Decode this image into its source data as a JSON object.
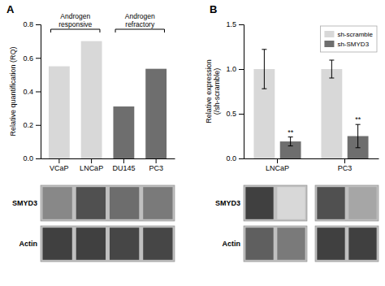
{
  "chart_data": [
    {
      "type": "bar",
      "title": "A",
      "categories": [
        "VCaP",
        "LNCaP",
        "DU145",
        "PC3"
      ],
      "values": [
        0.55,
        0.7,
        0.31,
        0.535
      ],
      "colors": [
        "#d8d8d8",
        "#d8d8d8",
        "#6e6e6e",
        "#6e6e6e"
      ],
      "y_label": "Relative quantification (RQ)",
      "ylim": [
        0,
        0.8
      ],
      "yticks": [
        {
          "value": 0.0,
          "label": "0.0"
        },
        0.2,
        0.4,
        0.6,
        0.8
      ],
      "annotations": [
        {
          "text": "Androgen\nresponsive",
          "from": "VCaP",
          "to": "LNCaP"
        },
        {
          "text": "Androgen\nrefractory",
          "from": "DU145",
          "to": "PC3"
        }
      ]
    },
    {
      "type": "bar",
      "title": "B",
      "categories": [
        "LNCaP",
        "PC3"
      ],
      "series": [
        {
          "name": "sh-scramble",
          "color": "#d8d8d8",
          "values": [
            1.0,
            1.0
          ],
          "errors": [
            0.22,
            0.1
          ]
        },
        {
          "name": "sh-SMYD3",
          "color": "#6e6e6e",
          "values": [
            0.19,
            0.25
          ],
          "errors": [
            0.05,
            0.13
          ]
        }
      ],
      "y_label": "Relative expression\n(/sh-scramble)",
      "ylim": [
        0,
        1.5
      ],
      "yticks": [
        {
          "value": 0.0,
          "label": "0.0"
        },
        0.5,
        {
          "value": 1.0,
          "label": "1.0"
        },
        1.5
      ],
      "legend": "upper right",
      "annotations": [
        {
          "text": "**",
          "category": "LNCaP",
          "series": "sh-SMYD3"
        },
        {
          "text": "**",
          "category": "PC3",
          "series": "sh-SMYD3"
        }
      ]
    },
    {
      "type": "heatmap",
      "categories": [
        "SMYD3",
        "Actin"
      ],
      "cells": [
        [
          0.55,
          0.75,
          0.65,
          0.6
        ],
        [
          0.8,
          0.8,
          0.78,
          0.78
        ]
      ]
    },
    {
      "type": "heatmap",
      "categories": [
        "SMYD3",
        "Actin"
      ],
      "cells": [
        [
          0.8,
          0.25,
          0.75,
          0.45
        ],
        [
          0.7,
          0.6,
          0.8,
          0.8
        ]
      ]
    }
  ]
}
